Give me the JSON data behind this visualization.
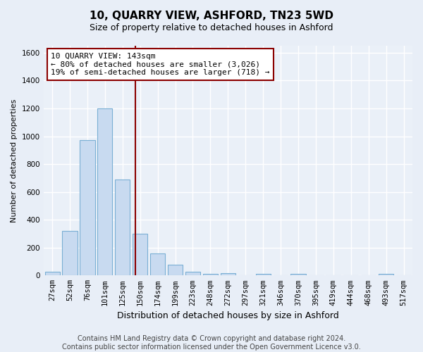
{
  "title": "10, QUARRY VIEW, ASHFORD, TN23 5WD",
  "subtitle": "Size of property relative to detached houses in Ashford",
  "xlabel": "Distribution of detached houses by size in Ashford",
  "ylabel": "Number of detached properties",
  "categories": [
    "27sqm",
    "52sqm",
    "76sqm",
    "101sqm",
    "125sqm",
    "150sqm",
    "174sqm",
    "199sqm",
    "223sqm",
    "248sqm",
    "272sqm",
    "297sqm",
    "321sqm",
    "346sqm",
    "370sqm",
    "395sqm",
    "419sqm",
    "444sqm",
    "468sqm",
    "493sqm",
    "517sqm"
  ],
  "values": [
    25,
    320,
    970,
    1200,
    690,
    300,
    160,
    75,
    25,
    10,
    15,
    2,
    10,
    2,
    10,
    2,
    2,
    2,
    2,
    10,
    2
  ],
  "bar_color": "#c8daf0",
  "bar_edge_color": "#7aafd4",
  "vline_color": "#8b0000",
  "annotation_line1": "10 QUARRY VIEW: 143sqm",
  "annotation_line2": "← 80% of detached houses are smaller (3,026)",
  "annotation_line3": "19% of semi-detached houses are larger (718) →",
  "annotation_box_color": "white",
  "annotation_box_edge": "#8b0000",
  "ylim": [
    0,
    1650
  ],
  "yticks": [
    0,
    200,
    400,
    600,
    800,
    1000,
    1200,
    1400,
    1600
  ],
  "footer_line1": "Contains HM Land Registry data © Crown copyright and database right 2024.",
  "footer_line2": "Contains public sector information licensed under the Open Government Licence v3.0.",
  "bg_color": "#e8eef7",
  "plot_bg_color": "#eaf0f8",
  "grid_color": "white",
  "title_fontsize": 11,
  "subtitle_fontsize": 9,
  "xlabel_fontsize": 9,
  "ylabel_fontsize": 8,
  "tick_fontsize": 7.5,
  "footer_fontsize": 7,
  "annot_fontsize": 8
}
